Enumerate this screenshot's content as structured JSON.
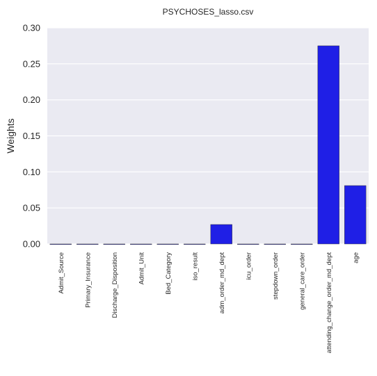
{
  "chart_data": {
    "type": "bar",
    "title": "PSYCHOSES_lasso.csv",
    "xlabel": "",
    "ylabel": "Weights",
    "categories": [
      "Admit_Source",
      "Primary_Insurance",
      "Discharge_Disposition",
      "Admit_Unit",
      "Bed_Category",
      "iso_result",
      "adm_order_md_dept",
      "icu_order",
      "stepdown_order",
      "general_care_order",
      "attending_change_order_md_dept",
      "age"
    ],
    "values": [
      0.0,
      0.0,
      0.0,
      0.0,
      0.0,
      0.0,
      0.027,
      0.0,
      0.0,
      0.0,
      0.275,
      0.081
    ],
    "ylim": [
      0,
      0.3
    ],
    "yticks": [
      "0.00",
      "0.05",
      "0.10",
      "0.15",
      "0.20",
      "0.25",
      "0.30"
    ],
    "grid": true,
    "bar_color": "#1f1fe6",
    "plot_background": "#eaeaf2",
    "grid_color": "#ffffff"
  }
}
